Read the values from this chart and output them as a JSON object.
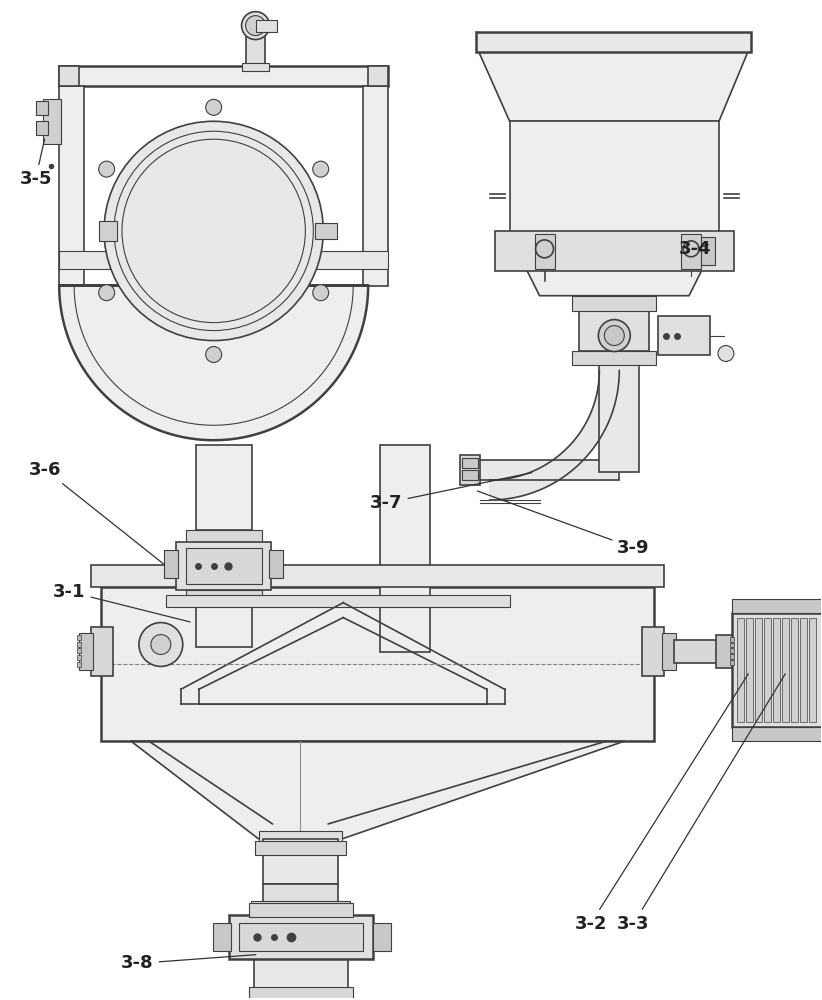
{
  "background_color": "#ffffff",
  "line_color": "#404040",
  "label_color": "#222222",
  "label_fontsize": 13,
  "fig_width": 8.22,
  "fig_height": 10.0
}
